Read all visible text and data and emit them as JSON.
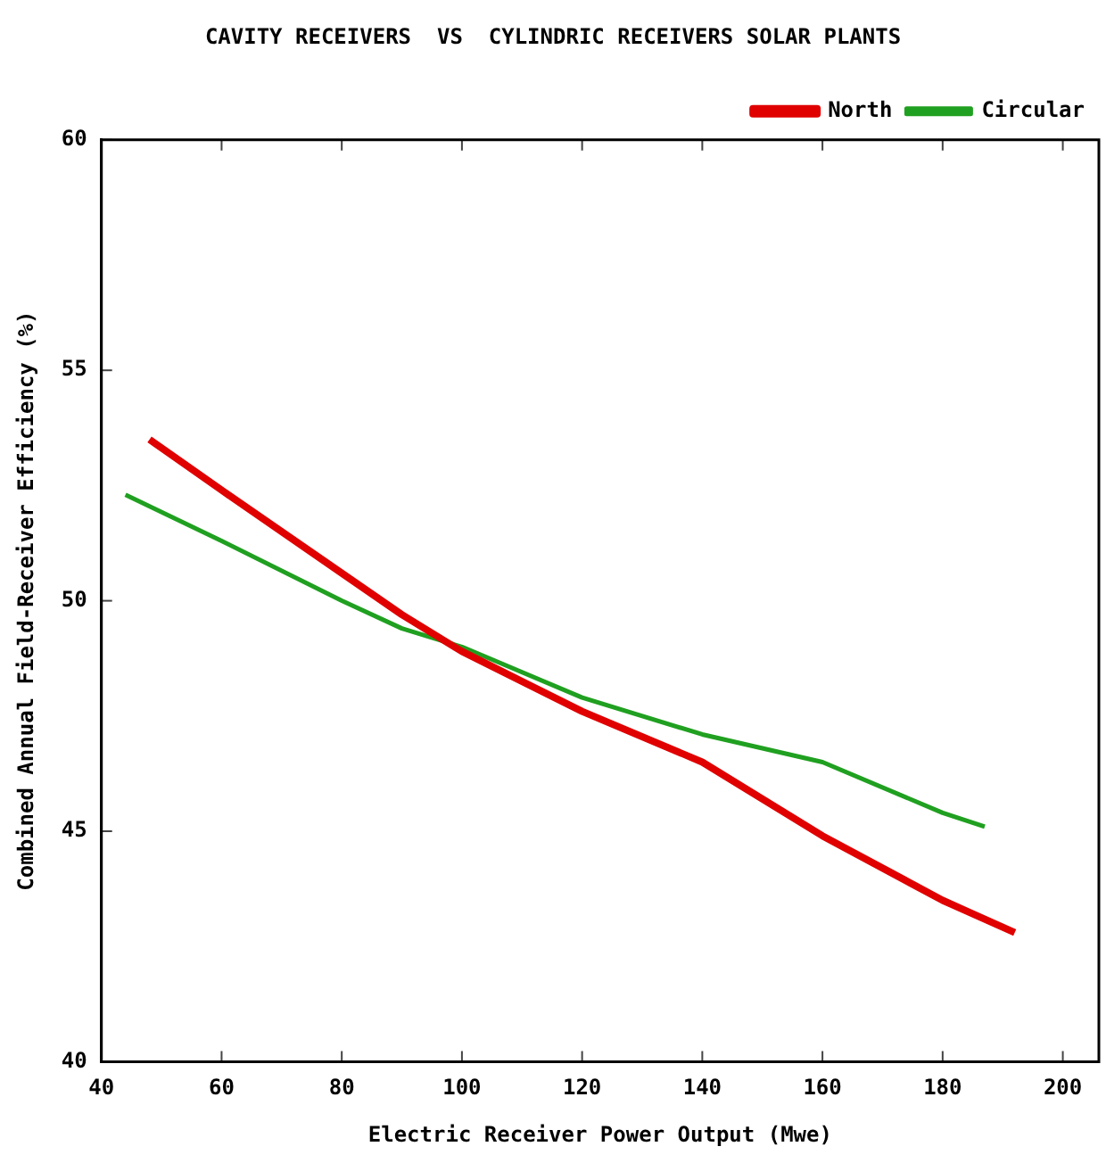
{
  "chart_data": {
    "type": "line",
    "title": "CAVITY RECEIVERS  VS  CYLINDRIC RECEIVERS SOLAR PLANTS",
    "xlabel": "Electric Receiver Power Output (Mwe)",
    "ylabel": "Combined Annual Field-Receiver Efficiency (%)",
    "series": [
      {
        "name": "North",
        "color": "#e00000",
        "x": [
          48,
          60,
          80,
          90,
          100,
          120,
          140,
          160,
          180,
          192
        ],
        "values": [
          53.5,
          52.4,
          50.6,
          49.7,
          48.9,
          47.6,
          46.5,
          44.9,
          43.5,
          42.8
        ]
      },
      {
        "name": "Circular",
        "color": "#20a020",
        "x": [
          44,
          60,
          80,
          90,
          100,
          120,
          140,
          160,
          180,
          187
        ],
        "values": [
          52.3,
          51.3,
          50.0,
          49.4,
          49.0,
          47.9,
          47.1,
          46.5,
          45.4,
          45.1
        ]
      }
    ],
    "xlim": [
      40,
      206
    ],
    "xticks": [
      40,
      60,
      80,
      100,
      120,
      140,
      160,
      180,
      200
    ],
    "ylim": [
      40,
      60
    ],
    "yticks": [
      40,
      45,
      50,
      55,
      60
    ],
    "grid": false,
    "legend": "top right",
    "marker": "none",
    "line_style": "solid"
  }
}
